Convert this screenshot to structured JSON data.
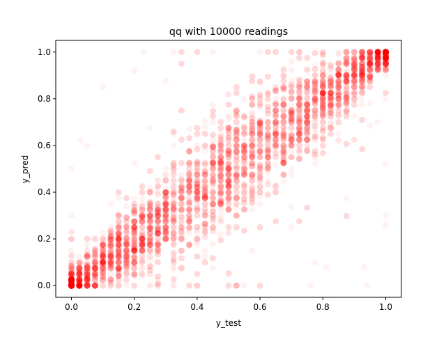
{
  "chart_data": {
    "type": "scatter",
    "title": "qq with 10000 readings",
    "xlabel": "y_test",
    "ylabel": "y_pred",
    "xlim": [
      -0.05,
      1.05
    ],
    "ylim": [
      -0.05,
      1.05
    ],
    "xticks": [
      0.0,
      0.2,
      0.4,
      0.6,
      0.8,
      1.0
    ],
    "yticks": [
      0.0,
      0.2,
      0.4,
      0.6,
      0.8,
      1.0
    ],
    "xtick_labels": [
      "0.0",
      "0.2",
      "0.4",
      "0.6",
      "0.8",
      "1.0"
    ],
    "ytick_labels": [
      "0.0",
      "0.2",
      "0.4",
      "0.6",
      "0.8",
      "1.0"
    ],
    "grid": false,
    "marker_color": "#ff0000",
    "marker_alpha": 0.05,
    "n_points": 10000,
    "trend": "points concentrated around the diagonal y_pred = y_test, with columns of points at discrete y_test values and clusters at (0,0) and (1,1)",
    "sample_points": [
      [
        0.0,
        0.0
      ],
      [
        0.0,
        0.02
      ],
      [
        0.0,
        0.05
      ],
      [
        0.0,
        0.1
      ],
      [
        0.0,
        0.15
      ],
      [
        0.0,
        0.2
      ],
      [
        0.0,
        0.3
      ],
      [
        0.0,
        0.5
      ],
      [
        0.03,
        0.0
      ],
      [
        0.03,
        0.05
      ],
      [
        0.03,
        0.1
      ],
      [
        0.03,
        0.62
      ],
      [
        0.1,
        0.1
      ],
      [
        0.1,
        0.15
      ],
      [
        0.1,
        0.2
      ],
      [
        0.1,
        0.85
      ],
      [
        0.2,
        0.2
      ],
      [
        0.2,
        0.25
      ],
      [
        0.2,
        0.92
      ],
      [
        0.23,
        1.0
      ],
      [
        0.3,
        0.3
      ],
      [
        0.3,
        0.35
      ],
      [
        0.35,
        0.4
      ],
      [
        0.4,
        0.4
      ],
      [
        0.4,
        0.45
      ],
      [
        0.45,
        0.5
      ],
      [
        0.5,
        0.5
      ],
      [
        0.5,
        0.55
      ],
      [
        0.55,
        0.55
      ],
      [
        0.6,
        0.6
      ],
      [
        0.6,
        0.65
      ],
      [
        0.65,
        0.7
      ],
      [
        0.7,
        0.7
      ],
      [
        0.7,
        0.75
      ],
      [
        0.75,
        0.8
      ],
      [
        0.7,
        0.25
      ],
      [
        0.76,
        0.0
      ],
      [
        0.8,
        0.8
      ],
      [
        0.8,
        0.85
      ],
      [
        0.81,
        0.08
      ],
      [
        0.85,
        0.9
      ],
      [
        0.9,
        0.9
      ],
      [
        0.9,
        0.95
      ],
      [
        0.94,
        0.0
      ],
      [
        0.93,
        0.08
      ],
      [
        1.0,
        1.0
      ],
      [
        1.0,
        0.95
      ],
      [
        1.0,
        0.9
      ],
      [
        1.0,
        0.8
      ],
      [
        1.0,
        0.52
      ],
      [
        1.0,
        0.3
      ],
      [
        1.0,
        0.26
      ]
    ]
  }
}
